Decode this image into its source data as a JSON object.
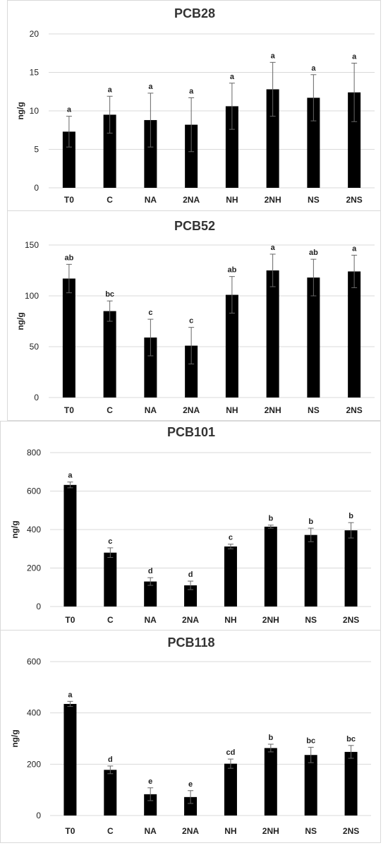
{
  "chart_data": [
    {
      "type": "bar",
      "title": "PCB28",
      "ylabel": "ng/g",
      "xlabel": "",
      "ylim": [
        0,
        20
      ],
      "yticks": [
        0,
        5,
        10,
        15,
        20
      ],
      "grid": true,
      "categories": [
        "T0",
        "C",
        "NA",
        "2NA",
        "NH",
        "2NH",
        "NS",
        "2NS"
      ],
      "values": [
        7.3,
        9.5,
        8.8,
        8.2,
        10.6,
        12.8,
        11.7,
        12.4
      ],
      "errors": [
        2.0,
        2.4,
        3.5,
        3.5,
        3.0,
        3.5,
        3.0,
        3.8
      ],
      "labels": [
        "a",
        "a",
        "a",
        "a",
        "a",
        "a",
        "a",
        "a"
      ]
    },
    {
      "type": "bar",
      "title": "PCB52",
      "ylabel": "ng/g",
      "xlabel": "",
      "ylim": [
        0,
        150
      ],
      "yticks": [
        0,
        50,
        100,
        150
      ],
      "grid": true,
      "categories": [
        "T0",
        "C",
        "NA",
        "2NA",
        "NH",
        "2NH",
        "NS",
        "2NS"
      ],
      "values": [
        117,
        85,
        59,
        51,
        101,
        125,
        118,
        124
      ],
      "errors": [
        14,
        10,
        18,
        18,
        18,
        16,
        18,
        16
      ],
      "labels": [
        "ab",
        "bc",
        "c",
        "c",
        "ab",
        "a",
        "ab",
        "a"
      ]
    },
    {
      "type": "bar",
      "title": "PCB101",
      "ylabel": "ng/g",
      "xlabel": "",
      "ylim": [
        0,
        800
      ],
      "yticks": [
        0,
        200,
        400,
        600,
        800
      ],
      "grid": true,
      "categories": [
        "T0",
        "C",
        "NA",
        "2NA",
        "NH",
        "2NH",
        "NS",
        "2NS"
      ],
      "values": [
        632,
        280,
        130,
        110,
        312,
        415,
        372,
        396
      ],
      "errors": [
        15,
        25,
        20,
        22,
        12,
        8,
        35,
        40
      ],
      "labels": [
        "a",
        "c",
        "d",
        "d",
        "c",
        "b",
        "b",
        "b"
      ]
    },
    {
      "type": "bar",
      "title": "PCB118",
      "ylabel": "ng/g",
      "xlabel": "",
      "ylim": [
        0,
        600
      ],
      "yticks": [
        0,
        200,
        400,
        600
      ],
      "grid": true,
      "categories": [
        "T0",
        "C",
        "NA",
        "2NA",
        "NH",
        "2NH",
        "NS",
        "2NS"
      ],
      "values": [
        435,
        178,
        83,
        72,
        202,
        263,
        236,
        248
      ],
      "errors": [
        10,
        15,
        25,
        25,
        18,
        15,
        30,
        25
      ],
      "labels": [
        "a",
        "d",
        "e",
        "e",
        "cd",
        "b",
        "bc",
        "bc"
      ]
    }
  ],
  "colors": {
    "bar": "#000000",
    "grid": "#d9d9d9",
    "error_bar": "#666666",
    "text": "#222222"
  }
}
